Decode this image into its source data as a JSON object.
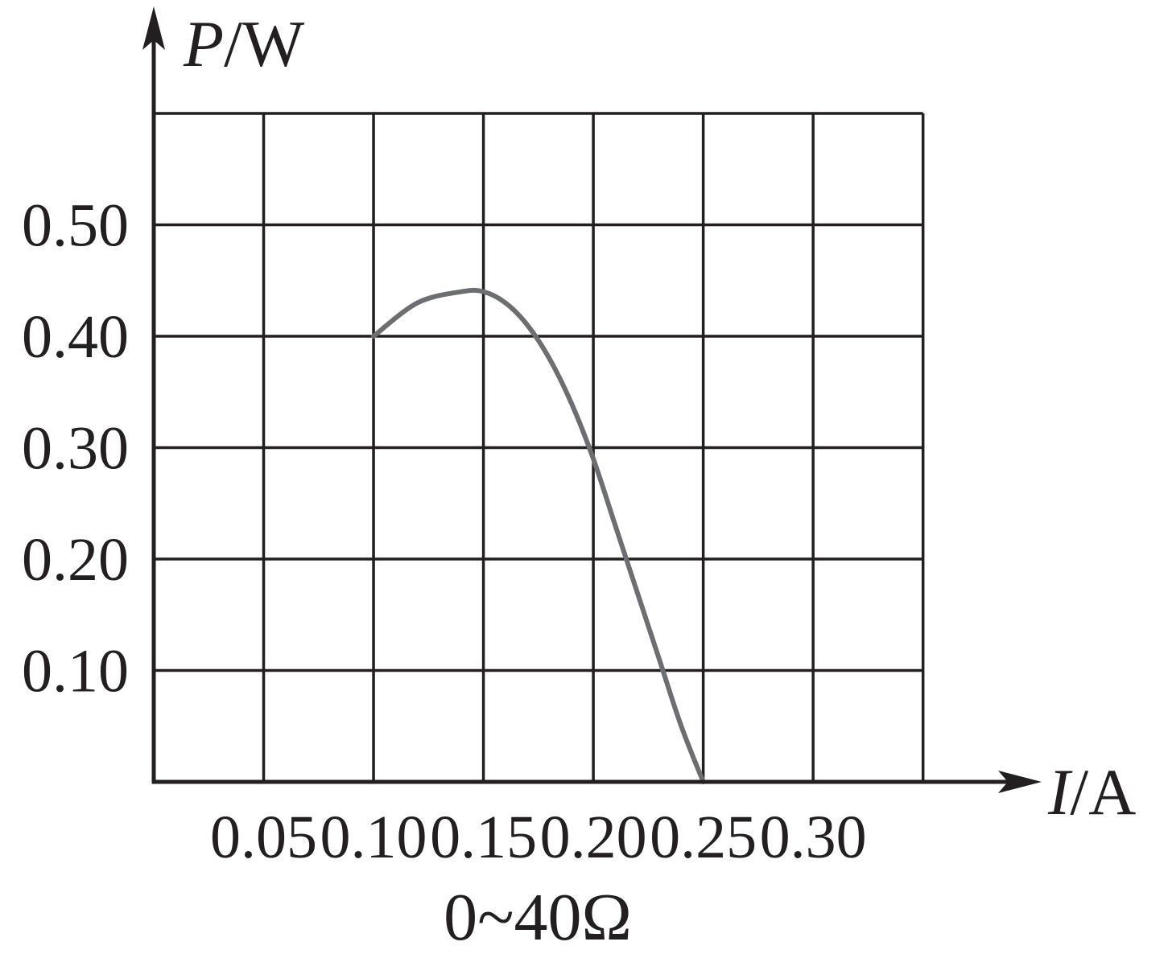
{
  "chart_data": {
    "type": "line",
    "x_label": {
      "symbol": "I",
      "unit": "/A"
    },
    "y_label": {
      "symbol": "P",
      "unit": "/W"
    },
    "xlim": [
      0,
      0.35
    ],
    "ylim": [
      0,
      0.6
    ],
    "x_ticks": [
      0.05,
      0.1,
      0.15,
      0.2,
      0.25,
      0.3
    ],
    "x_tick_labels": [
      "0.05",
      "0.10",
      "0.15",
      "0.20",
      "0.25",
      "0.30"
    ],
    "y_ticks": [
      0.1,
      0.2,
      0.3,
      0.4,
      0.5
    ],
    "y_tick_labels": [
      "0.10",
      "0.20",
      "0.30",
      "0.40",
      "0.50"
    ],
    "grid": true,
    "series": [
      {
        "x": [
          0.1,
          0.12,
          0.14,
          0.15,
          0.16,
          0.17,
          0.18,
          0.19,
          0.2,
          0.21,
          0.22,
          0.23,
          0.24,
          0.25
        ],
        "y": [
          0.4,
          0.43,
          0.44,
          0.44,
          0.43,
          0.41,
          0.38,
          0.34,
          0.29,
          0.23,
          0.17,
          0.11,
          0.05,
          0.0
        ],
        "color": "#6d6e71"
      }
    ],
    "caption": "0~40Ω",
    "colors": {
      "axis": "#231f20",
      "grid": "#231f20",
      "curve": "#6d6e71"
    }
  }
}
